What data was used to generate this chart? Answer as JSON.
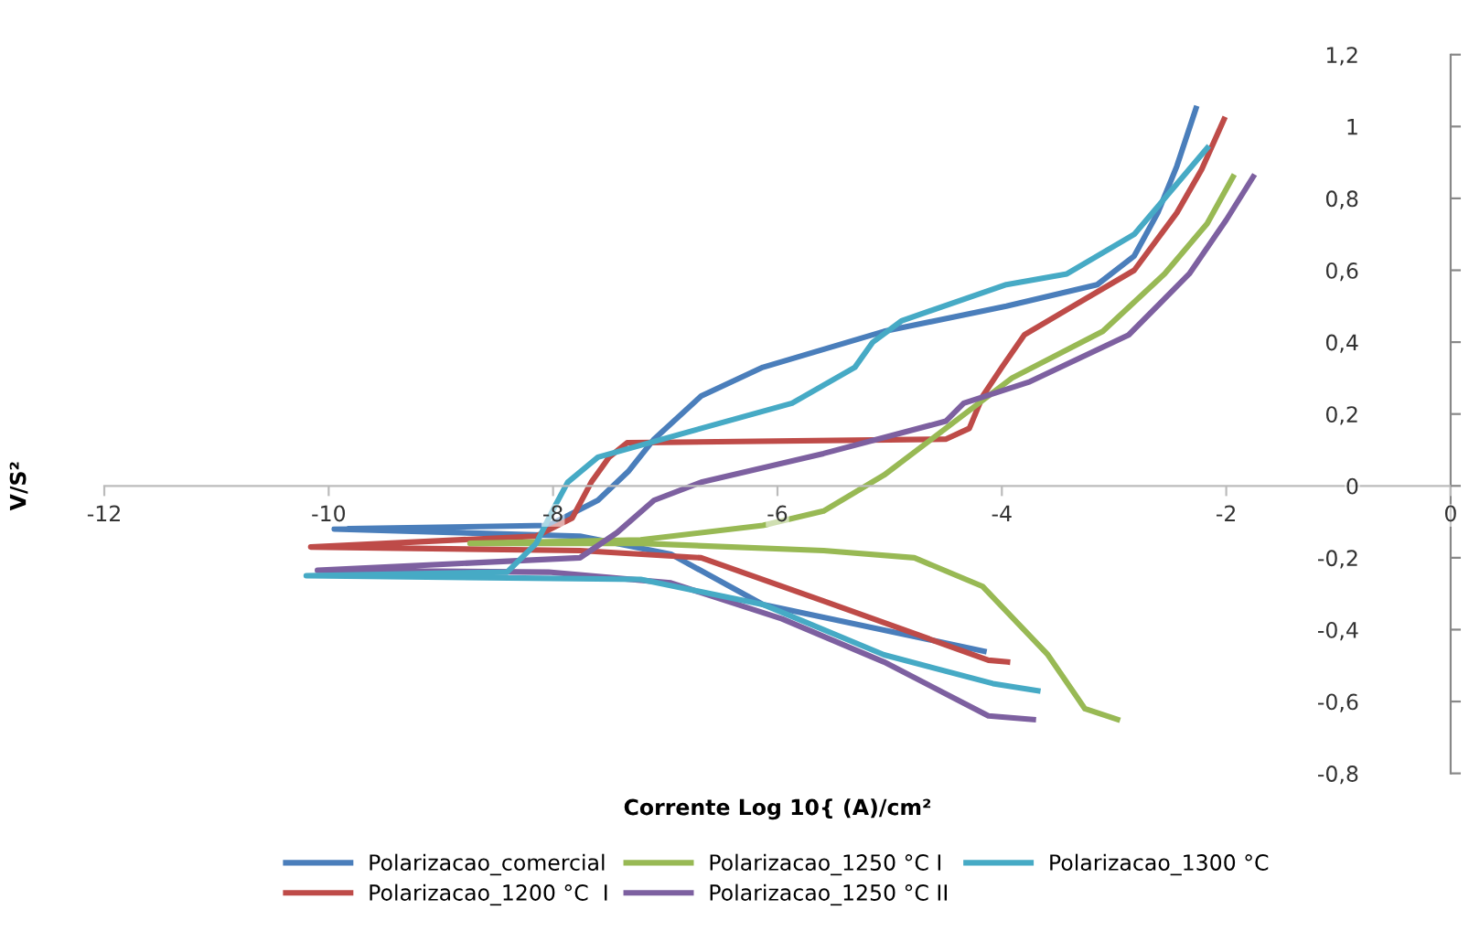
{
  "chart_data": {
    "type": "line",
    "xlabel": "Corrente Log 10{ (A)/cm²",
    "ylabel": "V/S²",
    "xlim": [
      -12,
      0
    ],
    "xticks": [
      -12,
      -10,
      -8,
      -6,
      -4,
      -2,
      0
    ],
    "ylim": [
      -0.8,
      1.2
    ],
    "yticks": [
      {
        "value": -0.8,
        "label": "-0,8"
      },
      {
        "value": -0.6,
        "label": "-0,6"
      },
      {
        "value": -0.4,
        "label": "-0,4"
      },
      {
        "value": -0.2,
        "label": "-0,2"
      },
      0,
      {
        "value": 0.2,
        "label": "0,2"
      },
      {
        "value": 0.4,
        "label": "0,4"
      },
      {
        "value": 0.6,
        "label": "0,6"
      },
      {
        "value": 0.8,
        "label": "0,8"
      },
      {
        "value": 1,
        "label": "1"
      },
      {
        "value": 1.2,
        "label": "1,2"
      }
    ],
    "grid": false,
    "legend": "bottom",
    "marker": "none",
    "line_style": "solid",
    "series": [
      {
        "name": "Polarizacao_comercial",
        "color": "#4a7ebb",
        "x": [
          -4.16,
          -6.13,
          -6.95,
          -7.76,
          -9.95,
          -8.04,
          -7.6,
          -7.33,
          -7.1,
          -6.68,
          -6.13,
          -5.05,
          -3.96,
          -3.15,
          -2.82,
          -2.61,
          -2.44,
          -2.27
        ],
        "values": [
          -0.46,
          -0.33,
          -0.19,
          -0.14,
          -0.12,
          -0.11,
          -0.04,
          0.04,
          0.13,
          0.25,
          0.33,
          0.43,
          0.5,
          0.56,
          0.64,
          0.76,
          0.89,
          1.05
        ]
      },
      {
        "name": "Polarizacao_1200 °C  I",
        "color": "#be4b48",
        "x": [
          -3.95,
          -4.12,
          -5.59,
          -6.68,
          -7.76,
          -10.16,
          -8.15,
          -7.83,
          -7.66,
          -7.5,
          -7.34,
          -4.5,
          -4.29,
          -4.17,
          -4.0,
          -3.8,
          -3.42,
          -2.82,
          -2.44,
          -2.22,
          -2.02
        ],
        "values": [
          -0.49,
          -0.485,
          -0.32,
          -0.2,
          -0.18,
          -0.17,
          -0.14,
          -0.09,
          0.01,
          0.08,
          0.12,
          0.13,
          0.16,
          0.25,
          0.33,
          0.42,
          0.49,
          0.6,
          0.76,
          0.88,
          1.02
        ]
      },
      {
        "name": "Polarizacao_1250 °C I",
        "color": "#98b954",
        "x": [
          -2.97,
          -3.26,
          -3.59,
          -4.17,
          -4.78,
          -5.59,
          -7.22,
          -8.74,
          -7.22,
          -6.13,
          -5.59,
          -5.05,
          -4.5,
          -3.91,
          -3.1,
          -2.55,
          -2.17,
          -1.94
        ],
        "values": [
          -0.65,
          -0.62,
          -0.47,
          -0.28,
          -0.2,
          -0.18,
          -0.16,
          -0.16,
          -0.15,
          -0.11,
          -0.07,
          0.03,
          0.16,
          0.3,
          0.43,
          0.59,
          0.73,
          0.86
        ]
      },
      {
        "name": "Polarizacao_1250 °C II",
        "color": "#7d60a0",
        "x": [
          -3.72,
          -4.12,
          -5.05,
          -5.96,
          -6.95,
          -8.04,
          -10.1,
          -7.76,
          -7.43,
          -7.1,
          -6.68,
          -5.59,
          -4.5,
          -4.34,
          -3.75,
          -2.87,
          -2.33,
          -2.0,
          -1.76
        ],
        "values": [
          -0.65,
          -0.64,
          -0.49,
          -0.37,
          -0.27,
          -0.24,
          -0.235,
          -0.2,
          -0.13,
          -0.04,
          0.01,
          0.09,
          0.18,
          0.23,
          0.29,
          0.42,
          0.59,
          0.74,
          0.86
        ]
      },
      {
        "name": "Polarizacao_1300 °C",
        "color": "#46aac5",
        "x": [
          -3.68,
          -4.08,
          -5.05,
          -6.13,
          -7.22,
          -10.2,
          -8.41,
          -8.15,
          -7.99,
          -7.87,
          -7.6,
          -6.68,
          -5.87,
          -5.31,
          -5.15,
          -4.89,
          -3.96,
          -3.42,
          -2.82,
          -2.17
        ],
        "values": [
          -0.57,
          -0.55,
          -0.47,
          -0.33,
          -0.26,
          -0.25,
          -0.24,
          -0.16,
          -0.06,
          0.01,
          0.08,
          0.16,
          0.23,
          0.33,
          0.4,
          0.46,
          0.56,
          0.59,
          0.7,
          0.94
        ]
      }
    ]
  }
}
